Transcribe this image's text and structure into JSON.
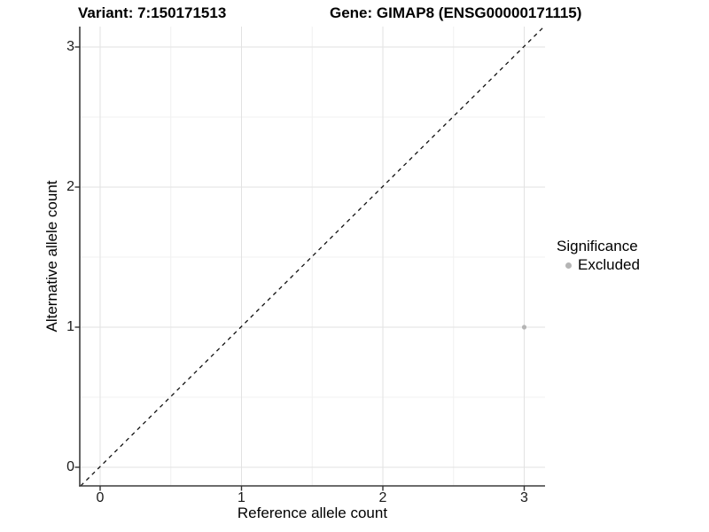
{
  "titles": {
    "variant": "Variant: 7:150171513",
    "gene": "Gene: GIMAP8 (ENSG00000171115)"
  },
  "axes": {
    "x": {
      "label": "Reference allele count",
      "ticks": [
        "0",
        "1",
        "2",
        "3"
      ]
    },
    "y": {
      "label": "Alternative allele count",
      "ticks": [
        "0",
        "1",
        "2",
        "3"
      ]
    }
  },
  "legend": {
    "title": "Significance",
    "items": [
      {
        "label": "Excluded",
        "color": "#b5b5b5"
      }
    ]
  },
  "chart_data": {
    "type": "scatter",
    "title": "Variant: 7:150171513   Gene: GIMAP8 (ENSG00000171115)",
    "xlabel": "Reference allele count",
    "ylabel": "Alternative allele count",
    "xlim": [
      -0.15,
      3.15
    ],
    "ylim": [
      -0.13,
      3.15
    ],
    "xticks": [
      0,
      1,
      2,
      3
    ],
    "yticks": [
      0,
      1,
      2,
      3
    ],
    "grid": "major and minor gridlines, white panel background",
    "legend_position": "right",
    "series": [
      {
        "name": "Excluded",
        "color": "#b5b5b5",
        "points": [
          {
            "x": 3,
            "y": 1
          }
        ]
      }
    ],
    "reference_line": {
      "type": "identity y=x",
      "style": "dashed",
      "color": "#000000"
    }
  }
}
